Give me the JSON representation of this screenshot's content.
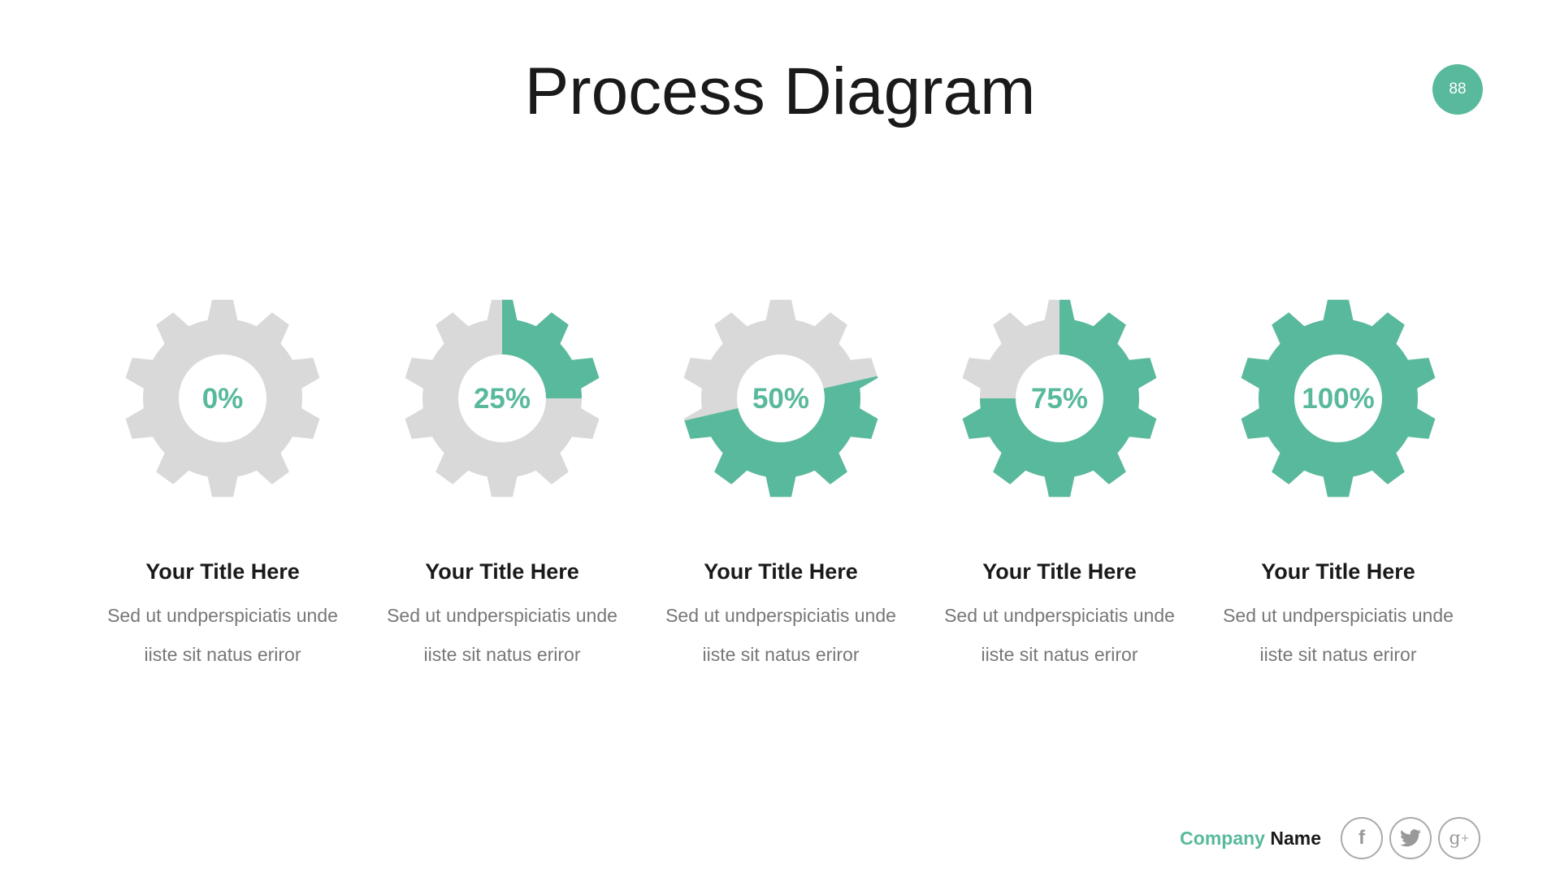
{
  "header": {
    "title": "Process Diagram",
    "page_number": "88"
  },
  "colors": {
    "accent": "#59b99c",
    "gear_base": "#d9d9d9"
  },
  "steps": [
    {
      "percent_label": "0%",
      "progress": 0,
      "title": "Your Title Here",
      "desc_line1": "Sed ut undperspiciatis unde",
      "desc_line2": "iiste sit natus eriror"
    },
    {
      "percent_label": "25%",
      "progress": 25,
      "title": "Your Title Here",
      "desc_line1": "Sed ut undperspiciatis unde",
      "desc_line2": "iiste sit natus eriror"
    },
    {
      "percent_label": "50%",
      "progress": 50,
      "title": "Your Title Here",
      "desc_line1": "Sed ut undperspiciatis unde",
      "desc_line2": "iiste sit natus eriror"
    },
    {
      "percent_label": "75%",
      "progress": 75,
      "title": "Your Title Here",
      "desc_line1": "Sed ut undperspiciatis unde",
      "desc_line2": "iiste sit natus eriror"
    },
    {
      "percent_label": "100%",
      "progress": 100,
      "title": "Your Title Here",
      "desc_line1": "Sed ut undperspiciatis unde",
      "desc_line2": "iiste sit natus eriror"
    }
  ],
  "footer": {
    "company_first": "Company",
    "company_second": "Name",
    "social": [
      {
        "icon": "facebook-icon"
      },
      {
        "icon": "twitter-icon"
      },
      {
        "icon": "google-plus-icon"
      }
    ]
  }
}
